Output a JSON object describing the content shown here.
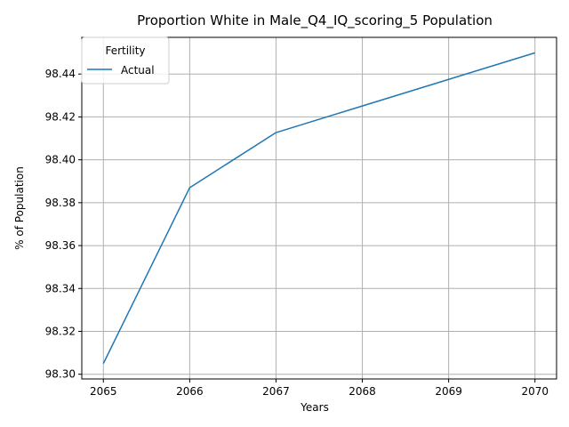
{
  "chart_data": {
    "type": "line",
    "title": "Proportion White in Male_Q4_IQ_scoring_5 Population",
    "xlabel": "Years",
    "ylabel": "% of Population",
    "x": [
      2065,
      2066,
      2067,
      2068,
      2069,
      2070
    ],
    "series": [
      {
        "name": "Actual",
        "color": "#1f77b4",
        "values": [
          98.305,
          98.387,
          98.4127,
          98.4251,
          98.4375,
          98.4499
        ]
      }
    ],
    "xticks": [
      "2065",
      "2066",
      "2067",
      "2068",
      "2069",
      "2070"
    ],
    "yticks": [
      "98.30",
      "98.32",
      "98.34",
      "98.36",
      "98.38",
      "98.40",
      "98.42",
      "98.44"
    ],
    "xlim": [
      2064.75,
      2070.25
    ],
    "ylim": [
      98.2978,
      98.4571
    ],
    "grid": true,
    "legend": {
      "title": "Fertility",
      "position": "upper-left"
    }
  }
}
